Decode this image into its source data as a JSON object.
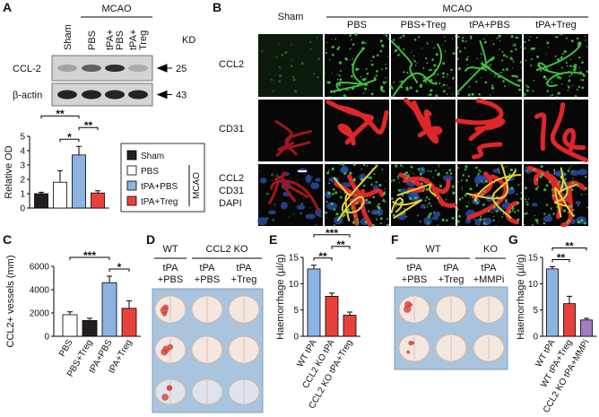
{
  "panel_labels": [
    "A",
    "B",
    "C",
    "D",
    "E",
    "F",
    "G"
  ],
  "blot": {
    "group": "MCAO",
    "lanes": [
      [
        "Sham"
      ],
      [
        "PBS"
      ],
      [
        "tPA+",
        "PBS"
      ],
      [
        "tPA+",
        "Treg"
      ]
    ],
    "unit": "KD",
    "rows": [
      {
        "name": "CCL-2",
        "marker": "25"
      },
      {
        "name": "β-actin",
        "marker": "43"
      }
    ]
  },
  "micrographs": {
    "group": "MCAO",
    "columns": [
      "Sham",
      "PBS",
      "PBS+Treg",
      "tPA+PBS",
      "tPA+Treg"
    ],
    "rows": [
      [
        {
          "text": "CCL2",
          "color": "#3db54a"
        }
      ],
      [
        {
          "text": "CD31",
          "color": "#e0262b"
        }
      ],
      [
        {
          "text": "CCL2",
          "color": "#3db54a"
        },
        {
          "text": "CD31",
          "color": "#e0262b"
        },
        {
          "text": "DAPI",
          "color": "#2b3a9b"
        }
      ]
    ]
  },
  "brains_D": {
    "groups": [
      "WT",
      "CCL2 KO"
    ],
    "columns": [
      [
        "tPA",
        "+PBS"
      ],
      [
        "tPA",
        "+PBS"
      ],
      [
        "tPA",
        "+Treg"
      ]
    ]
  },
  "brains_F": {
    "groups": [
      "WT",
      "KO"
    ],
    "columns": [
      [
        "tPA",
        "+PBS"
      ],
      [
        "tPA",
        "+Treg"
      ],
      [
        "tPA",
        "+MMPi"
      ]
    ]
  },
  "chart_data": [
    {
      "type": "bar",
      "ylabel": "Relative OD",
      "categories": [
        "Sham",
        "PBS",
        "tPA+PBS",
        "tPA+Treg"
      ],
      "values": [
        1.0,
        1.8,
        3.7,
        1.05
      ],
      "errors": [
        0.1,
        0.8,
        0.6,
        0.15
      ],
      "colors": [
        "#231f20",
        "#ffffff",
        "#8db3e2",
        "#e8413c"
      ],
      "ylim": [
        0,
        5
      ],
      "yticks": [
        0,
        1,
        2,
        3,
        4,
        5
      ],
      "legend": true,
      "legend_group": "MCAO",
      "significance": [
        {
          "text": "*",
          "between": [
            "PBS",
            "tPA+PBS"
          ]
        },
        {
          "text": "**",
          "between": [
            "tPA+PBS",
            "tPA+Treg"
          ]
        },
        {
          "text": "**",
          "between": [
            "Sham",
            "tPA+PBS"
          ]
        }
      ]
    },
    {
      "type": "bar",
      "ylabel": "CCL2+ vessels (mm)",
      "categories": [
        "PBS",
        "PBS+Treg",
        "tPA+PBS",
        "tPA+Treg"
      ],
      "values": [
        1850,
        1350,
        4600,
        2400
      ],
      "errors": [
        250,
        200,
        550,
        650
      ],
      "colors": [
        "#ffffff",
        "#231f20",
        "#8db3e2",
        "#e8413c"
      ],
      "ylim": [
        0,
        6000
      ],
      "yticks": [
        0,
        2000,
        4000,
        6000
      ],
      "legend": false,
      "significance": [
        {
          "text": "*",
          "between": [
            "tPA+PBS",
            "tPA+Treg"
          ]
        },
        {
          "text": "***",
          "between": [
            "PBS",
            "tPA+PBS"
          ]
        }
      ]
    },
    {
      "type": "bar",
      "ylabel": "Haemorrhage (µl/g)",
      "categories": [
        "WT tPA",
        "CCL2 KO tPA",
        "CCL2 KO tPA+Treg"
      ],
      "values": [
        12.8,
        7.6,
        4.0
      ],
      "errors": [
        0.7,
        0.6,
        0.6
      ],
      "colors": [
        "#8db3e2",
        "#e8413c",
        "#e8413c"
      ],
      "ylim": [
        0,
        15
      ],
      "yticks": [
        0,
        5,
        10,
        15
      ],
      "legend": false,
      "significance": [
        {
          "text": "**",
          "between": [
            "WT tPA",
            "CCL2 KO tPA"
          ]
        },
        {
          "text": "**",
          "between": [
            "CCL2 KO tPA",
            "CCL2 KO tPA+Treg"
          ]
        },
        {
          "text": "***",
          "between": [
            "WT tPA",
            "CCL2 KO tPA+Treg"
          ]
        }
      ]
    },
    {
      "type": "bar",
      "ylabel": "Haemorrhage (µl/g)",
      "categories": [
        "WT tPA",
        "WT tPA+Treg",
        "CCL2 KO tPA+MMPi"
      ],
      "values": [
        12.8,
        6.2,
        3.1
      ],
      "errors": [
        0.4,
        1.4,
        0.3
      ],
      "colors": [
        "#8db3e2",
        "#e8413c",
        "#a07cc0"
      ],
      "ylim": [
        0,
        15
      ],
      "yticks": [
        0,
        5,
        10,
        15
      ],
      "legend": false,
      "significance": [
        {
          "text": "**",
          "between": [
            "WT tPA",
            "WT tPA+Treg"
          ]
        },
        {
          "text": "**",
          "between": [
            "WT tPA",
            "CCL2 KO tPA+MMPi"
          ]
        }
      ]
    }
  ]
}
